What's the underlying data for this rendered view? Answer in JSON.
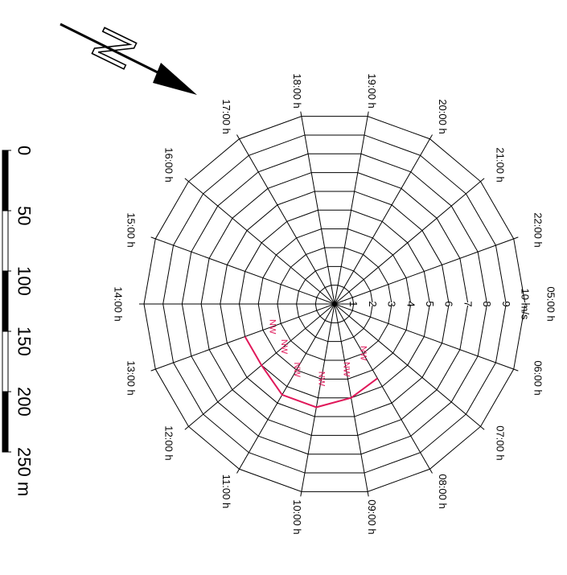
{
  "chart_data": {
    "type": "radar",
    "hour_labels": [
      "05:00 h",
      "06:00 h",
      "07:00 h",
      "08:00 h",
      "09:00 h",
      "10:00 h",
      "11:00 h",
      "12:00 h",
      "13:00 h",
      "14:00 h",
      "15:00 h",
      "16:00 h",
      "17:00 h",
      "18:00 h",
      "19:00 h",
      "20:00 h",
      "21:00 h",
      "22:00 h"
    ],
    "ring_labels": [
      "1",
      "2",
      "3",
      "4",
      "5",
      "6",
      "7",
      "8",
      "9",
      "10 m/s"
    ],
    "rmax": 10,
    "series": [
      {
        "color": "#e0185a",
        "points": [
          {
            "hour": "08:00 h",
            "speed": 4.5,
            "label": "NW"
          },
          {
            "hour": "09:00 h",
            "speed": 5.0,
            "label": "NW"
          },
          {
            "hour": "10:00 h",
            "speed": 5.5,
            "label": "NW"
          },
          {
            "hour": "11:00 h",
            "speed": 5.5,
            "label": "NW"
          },
          {
            "hour": "12:00 h",
            "speed": 5.0,
            "label": "NW"
          },
          {
            "hour": "13:00 h",
            "speed": 5.0,
            "label": "NW"
          }
        ]
      }
    ]
  },
  "north_arrow": {
    "letter": "N"
  },
  "scale_bar": {
    "labels": [
      "0",
      "50",
      "100",
      "150",
      "200",
      "250 m"
    ]
  }
}
